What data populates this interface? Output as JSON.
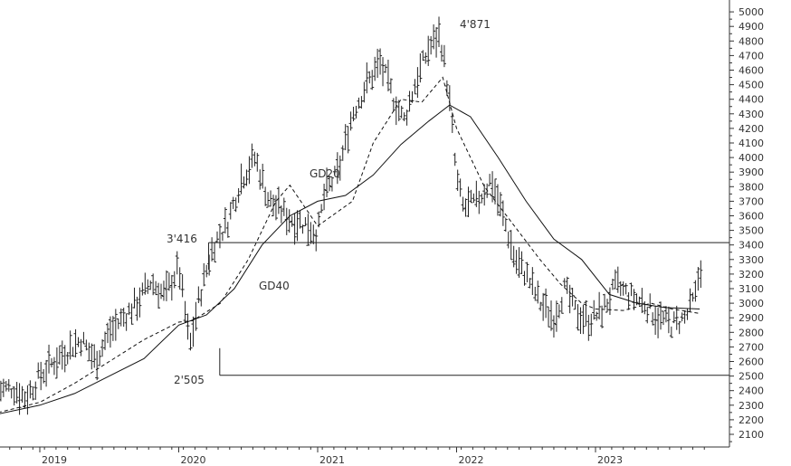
{
  "chart_data": {
    "type": "line",
    "title": "",
    "xlabel": "",
    "ylabel": "",
    "ylim": [
      2050,
      5050
    ],
    "y_ticks": [
      2100,
      2200,
      2300,
      2400,
      2500,
      2600,
      2700,
      2800,
      2900,
      3000,
      3100,
      3200,
      3300,
      3400,
      3500,
      3600,
      3700,
      3800,
      3900,
      4000,
      4100,
      4200,
      4300,
      4400,
      4500,
      4600,
      4700,
      4800,
      4900,
      5000
    ],
    "x_tick_labels": [
      "2019",
      "2020",
      "2021",
      "2022",
      "2023"
    ],
    "grid": false,
    "annotations": {
      "peak": "4'871",
      "high": "3'416",
      "low": "2'505",
      "ma20": "GD20",
      "ma40": "GD40"
    },
    "levels": [
      3416,
      2505
    ],
    "series": [
      {
        "name": "GD20",
        "style": "dashed",
        "x": [
          2018.7,
          2019.0,
          2019.25,
          2019.5,
          2019.75,
          2020.0,
          2020.1,
          2020.3,
          2020.5,
          2020.7,
          2020.8,
          2021.0,
          2021.25,
          2021.4,
          2021.6,
          2021.75,
          2021.9,
          2022.0,
          2022.2,
          2022.4,
          2022.6,
          2022.75,
          2022.9,
          2023.0,
          2023.2,
          2023.4,
          2023.55,
          2023.75
        ],
        "values": [
          2250,
          2320,
          2450,
          2600,
          2750,
          2870,
          2880,
          3000,
          3300,
          3700,
          3810,
          3530,
          3700,
          4100,
          4400,
          4380,
          4550,
          4200,
          3800,
          3550,
          3300,
          3130,
          3000,
          2960,
          2950,
          3000,
          2960,
          2930
        ]
      },
      {
        "name": "GD40",
        "style": "solid",
        "x": [
          2018.7,
          2019.0,
          2019.25,
          2019.5,
          2019.75,
          2020.0,
          2020.2,
          2020.4,
          2020.6,
          2020.8,
          2021.0,
          2021.2,
          2021.4,
          2021.6,
          2021.8,
          2021.95,
          2022.1,
          2022.3,
          2022.5,
          2022.7,
          2022.9,
          2023.1,
          2023.3,
          2023.5,
          2023.75
        ],
        "values": [
          2240,
          2300,
          2380,
          2500,
          2620,
          2850,
          2920,
          3100,
          3400,
          3600,
          3700,
          3740,
          3880,
          4090,
          4250,
          4360,
          4280,
          4000,
          3700,
          3440,
          3300,
          3060,
          3000,
          2970,
          2960
        ]
      },
      {
        "name": "",
        "style": "ohlc",
        "x": [
          2018.7,
          2018.8,
          2018.9,
          2019.0,
          2019.1,
          2019.2,
          2019.3,
          2019.4,
          2019.5,
          2019.6,
          2019.7,
          2019.8,
          2019.9,
          2020.0,
          2020.08,
          2020.15,
          2020.25,
          2020.35,
          2020.45,
          2020.55,
          2020.65,
          2020.72,
          2020.8,
          2020.9,
          2021.0,
          2021.05,
          2021.15,
          2021.25,
          2021.35,
          2021.45,
          2021.55,
          2021.62,
          2021.7,
          2021.8,
          2021.88,
          2021.92,
          2021.96,
          2022.0,
          2022.05,
          2022.15,
          2022.25,
          2022.35,
          2022.42,
          2022.5,
          2022.6,
          2022.7,
          2022.78,
          2022.85,
          2022.95,
          2023.05,
          2023.15,
          2023.25,
          2023.35,
          2023.45,
          2023.55,
          2023.65,
          2023.72,
          2023.75
        ],
        "values": [
          2400,
          2420,
          2350,
          2500,
          2600,
          2680,
          2750,
          2600,
          2800,
          2900,
          3000,
          3150,
          3050,
          3250,
          2700,
          3050,
          3400,
          3550,
          3850,
          4000,
          3700,
          3650,
          3580,
          3550,
          3480,
          3750,
          3900,
          4300,
          4500,
          4650,
          4400,
          4250,
          4500,
          4750,
          4850,
          4600,
          4300,
          3850,
          3650,
          3700,
          3850,
          3550,
          3300,
          3200,
          3000,
          2900,
          3100,
          2950,
          2880,
          2950,
          3120,
          3050,
          3000,
          2900,
          2850,
          2900,
          3050,
          3250
        ]
      }
    ]
  }
}
